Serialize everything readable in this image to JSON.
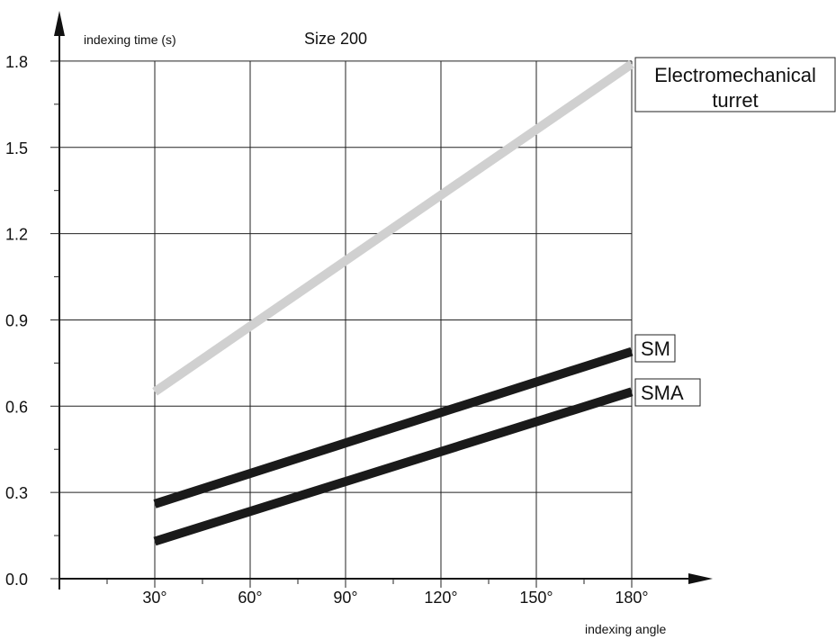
{
  "chart_data": {
    "type": "line",
    "title": "Size 200",
    "ylabel": "indexing time (s)",
    "xlabel": "indexing angle",
    "x_ticks": [
      30,
      60,
      90,
      120,
      150,
      180
    ],
    "x_tick_labels": [
      "30°",
      "60°",
      "90°",
      "120°",
      "150°",
      "180°"
    ],
    "y_ticks": [
      0.0,
      0.3,
      0.6,
      0.9,
      1.2,
      1.5,
      1.8
    ],
    "y_tick_labels": [
      "0.0",
      "0.3",
      "0.6",
      "0.9",
      "1.2",
      "1.5",
      "1.8"
    ],
    "xlim": [
      0,
      195
    ],
    "ylim": [
      0,
      1.95
    ],
    "grid": true,
    "series": [
      {
        "name": "Electromechanical turret",
        "label_lines": [
          "Electromechanical",
          "turret"
        ],
        "color": "#d0d0d0",
        "x": [
          30,
          180
        ],
        "y": [
          0.65,
          1.79
        ]
      },
      {
        "name": "SM",
        "label_lines": [
          "SM"
        ],
        "color": "#1a1a1a",
        "x": [
          30,
          180
        ],
        "y": [
          0.26,
          0.79
        ]
      },
      {
        "name": "SMA",
        "label_lines": [
          "SMA"
        ],
        "color": "#1a1a1a",
        "x": [
          30,
          180
        ],
        "y": [
          0.13,
          0.65
        ]
      }
    ]
  }
}
